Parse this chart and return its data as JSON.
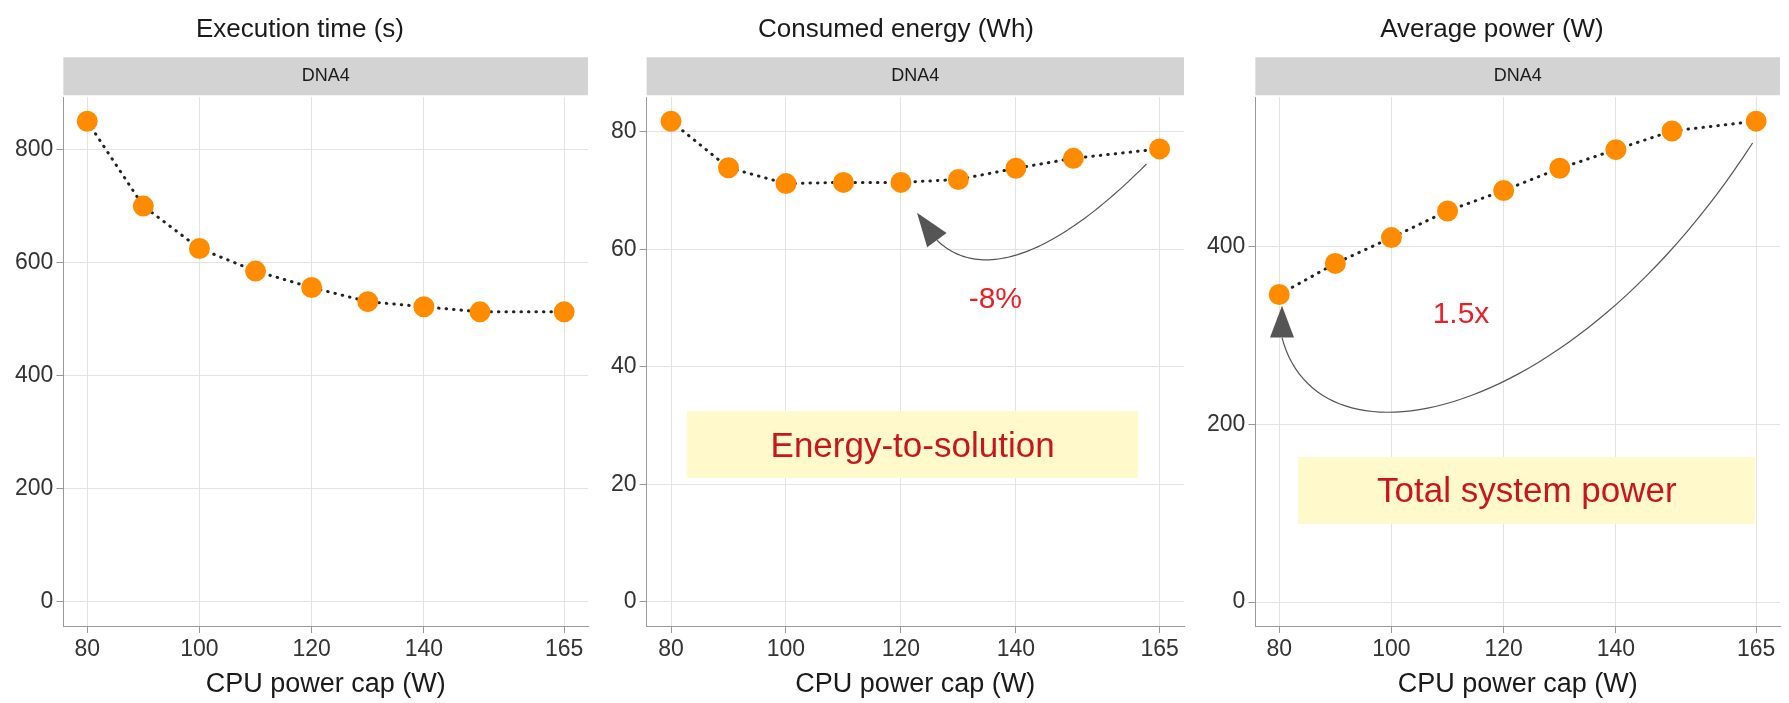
{
  "chart_data": [
    {
      "type": "line",
      "title": "Execution time (s)",
      "subtitle": "DNA4",
      "xlabel": "CPU power cap (W)",
      "x": [
        80,
        90,
        100,
        110,
        120,
        130,
        140,
        150,
        165
      ],
      "values": [
        850,
        700,
        625,
        585,
        556,
        531,
        522,
        513,
        513
      ],
      "color": "#ff8c00",
      "xlim": [
        75.75,
        169.25
      ],
      "xticks": [
        80,
        100,
        120,
        140,
        165
      ],
      "ylim": [
        -42.5,
        892.5
      ],
      "yticks": [
        0,
        200,
        400,
        600,
        800
      ],
      "grid": true,
      "marker": "circle",
      "line_style": "dotted"
    },
    {
      "type": "line",
      "title": "Consumed energy (Wh)",
      "subtitle": "DNA4",
      "xlabel": "CPU power cap (W)",
      "x": [
        80,
        90,
        100,
        110,
        120,
        130,
        140,
        150,
        165
      ],
      "values": [
        81.8,
        73.9,
        71.2,
        71.4,
        71.4,
        71.9,
        73.8,
        75.5,
        77.1
      ],
      "color": "#ff8c00",
      "xlim": [
        75.75,
        169.25
      ],
      "xticks": [
        80,
        100,
        120,
        140,
        165
      ],
      "ylim": [
        -4.1,
        85.9
      ],
      "yticks": [
        0,
        20,
        40,
        60,
        80
      ],
      "grid": true,
      "marker": "circle",
      "line_style": "dotted",
      "annotations": [
        "-8%",
        "Energy-to-solution"
      ]
    },
    {
      "type": "line",
      "title": "Average power (W)",
      "subtitle": "DNA4",
      "xlabel": "CPU power cap (W)",
      "x": [
        80,
        90,
        100,
        110,
        120,
        130,
        140,
        150,
        165
      ],
      "values": [
        346,
        381,
        410,
        440,
        463,
        488,
        509,
        530,
        541
      ],
      "color": "#ff8c00",
      "xlim": [
        75.75,
        169.25
      ],
      "xticks": [
        80,
        100,
        120,
        140,
        165
      ],
      "ylim": [
        -27,
        568
      ],
      "yticks": [
        0,
        200,
        400
      ],
      "grid": true,
      "marker": "circle",
      "line_style": "dotted",
      "annotations": [
        "1.5x",
        "Total system power"
      ]
    }
  ]
}
